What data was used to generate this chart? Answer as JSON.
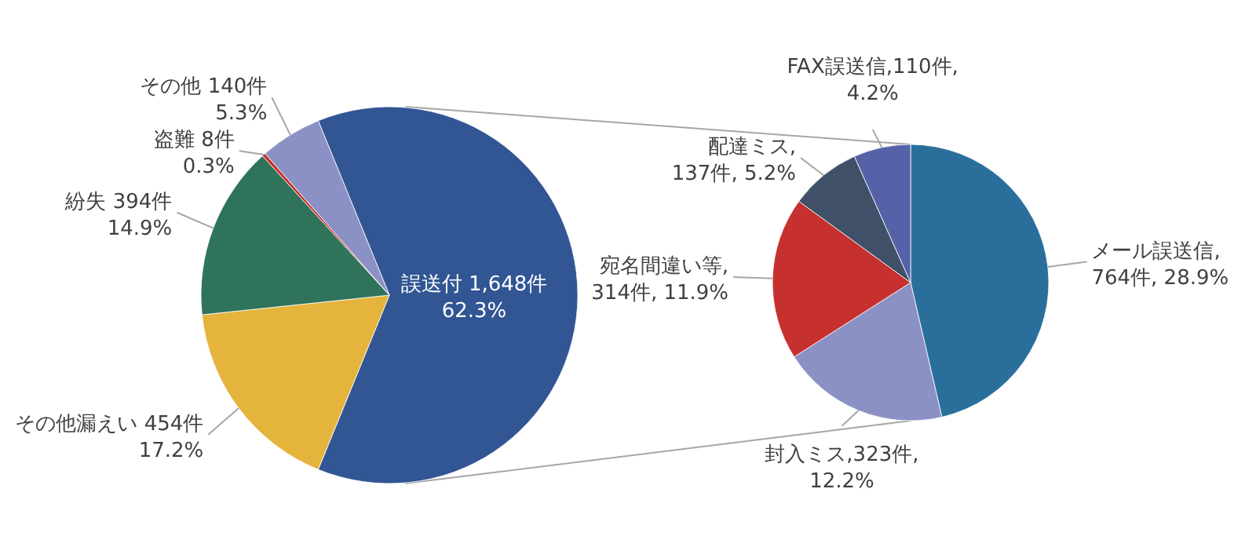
{
  "chart_data": [
    {
      "type": "pie",
      "categories": [
        "誤送付",
        "その他漏えい",
        "紛失",
        "盗難",
        "その他"
      ],
      "values": [
        1648,
        454,
        394,
        8,
        140
      ],
      "colors": [
        "#325694",
        "#e5b43c",
        "#2e735a",
        "#c9302c",
        "#8b91c4"
      ],
      "value_labels": [
        " 1,648件\n62.3%",
        " 454件\n17.2%",
        " 394件\n14.9%",
        " 8件\n0.3%",
        " 140件\n5.3%"
      ]
    },
    {
      "type": "pie",
      "categories": [
        "メール誤送信",
        "封入ミス",
        "宛名間違い等",
        "配達ミス",
        "FAX誤送信"
      ],
      "values": [
        764,
        323,
        314,
        137,
        110
      ],
      "colors": [
        "#2a6f9b",
        "#8b91c4",
        "#c6302f",
        "#3f5068",
        "#5562a8"
      ],
      "value_labels": [
        ",\n764件, 28.9%",
        ",323件,\n12.2%",
        ",\n314件, 11.9%",
        ",\n137件, 5.2%",
        ",110件,\n4.2%"
      ]
    }
  ]
}
